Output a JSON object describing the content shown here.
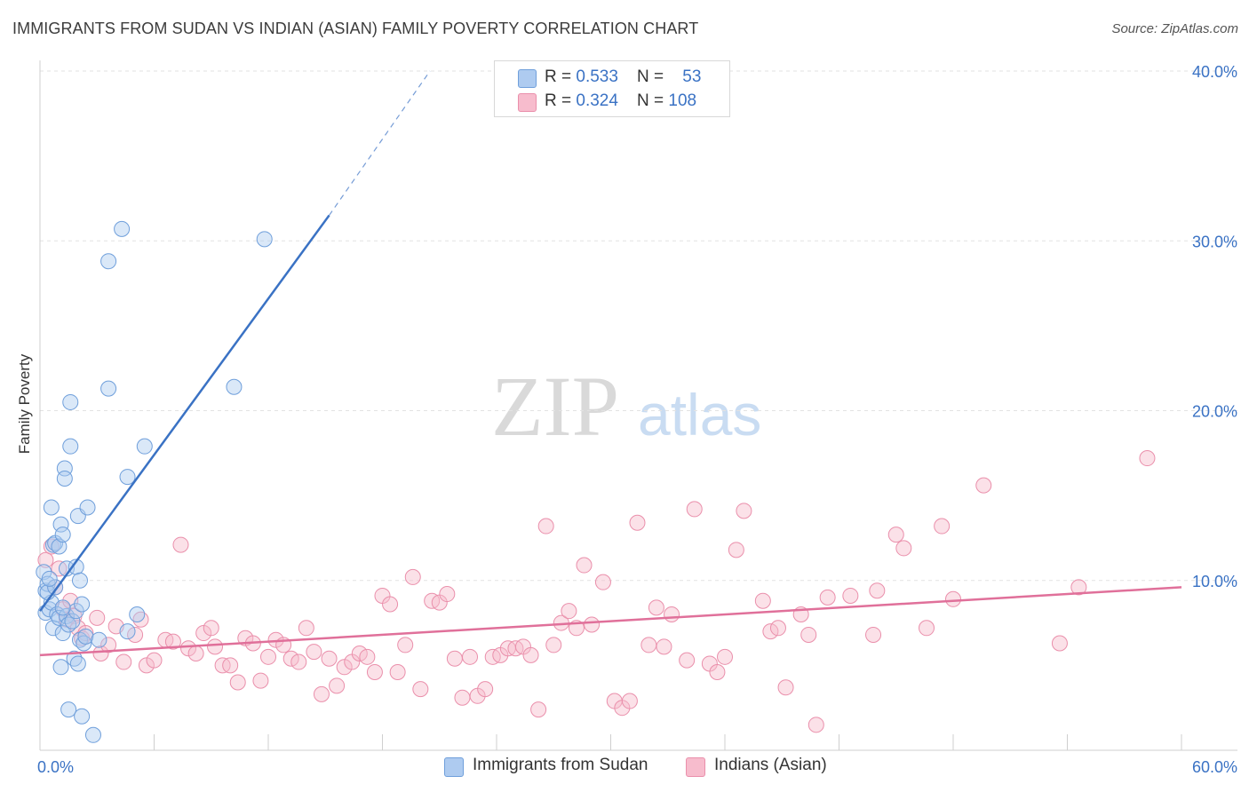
{
  "header": {
    "title": "IMMIGRANTS FROM SUDAN VS INDIAN (ASIAN) FAMILY POVERTY CORRELATION CHART",
    "source": "Source: ZipAtlas.com"
  },
  "watermark": {
    "zip": "ZIP",
    "atlas": "atlas"
  },
  "colors": {
    "sudan_fill": "#aecbf0",
    "sudan_stroke": "#6f9fdb",
    "sudan_line": "#3a72c4",
    "indian_fill": "#f7bccd",
    "indian_stroke": "#ea8fab",
    "indian_line": "#e0709a",
    "accent_text": "#3a72c4"
  },
  "legend": {
    "rows": [
      {
        "r_label": "R = ",
        "r_value": "0.533",
        "n_label": "N = ",
        "n_value": "53"
      },
      {
        "r_label": "R = ",
        "r_value": "0.324",
        "n_label": "N = ",
        "n_value": "108"
      }
    ]
  },
  "chart_data": {
    "type": "scatter",
    "title": "IMMIGRANTS FROM SUDAN VS INDIAN (ASIAN) FAMILY POVERTY CORRELATION CHART",
    "xlabel": "",
    "ylabel": "Family Poverty",
    "xlim": [
      0,
      60
    ],
    "ylim": [
      0,
      40
    ],
    "x_tick_labels": [
      "0.0%",
      "60.0%"
    ],
    "y_tick_labels": [
      "10.0%",
      "20.0%",
      "30.0%",
      "40.0%"
    ],
    "y_ticks": [
      10,
      20,
      30,
      40
    ],
    "grid": true,
    "legend_position": "top-center",
    "series": [
      {
        "name": "Immigrants from Sudan",
        "r": 0.533,
        "n": 53,
        "trend": {
          "x0": 0,
          "y0": 8.2,
          "x1": 15.2,
          "y1": 31.5,
          "dash_x1": 20.5,
          "dash_y1": 40.0
        },
        "points": [
          [
            0.2,
            10.5
          ],
          [
            0.3,
            8.1
          ],
          [
            0.3,
            9.4
          ],
          [
            0.4,
            9.8
          ],
          [
            0.5,
            8.3
          ],
          [
            0.6,
            8.7
          ],
          [
            0.6,
            14.3
          ],
          [
            0.7,
            12.1
          ],
          [
            0.7,
            7.2
          ],
          [
            0.8,
            12.2
          ],
          [
            0.9,
            8.0
          ],
          [
            1.0,
            12.0
          ],
          [
            1.0,
            7.8
          ],
          [
            1.1,
            13.3
          ],
          [
            1.1,
            4.9
          ],
          [
            1.2,
            12.7
          ],
          [
            1.2,
            6.9
          ],
          [
            1.3,
            16.6
          ],
          [
            1.3,
            16.0
          ],
          [
            1.4,
            7.9
          ],
          [
            1.4,
            10.7
          ],
          [
            1.5,
            2.4
          ],
          [
            1.5,
            7.4
          ],
          [
            1.6,
            20.5
          ],
          [
            1.6,
            17.9
          ],
          [
            1.7,
            7.6
          ],
          [
            1.8,
            5.4
          ],
          [
            1.9,
            10.8
          ],
          [
            1.9,
            8.2
          ],
          [
            2.0,
            5.1
          ],
          [
            2.0,
            13.8
          ],
          [
            2.1,
            6.5
          ],
          [
            2.1,
            10.0
          ],
          [
            2.2,
            2.0
          ],
          [
            2.2,
            8.6
          ],
          [
            2.3,
            6.3
          ],
          [
            2.4,
            6.7
          ],
          [
            2.5,
            14.3
          ],
          [
            2.8,
            0.9
          ],
          [
            3.1,
            6.5
          ],
          [
            3.6,
            21.3
          ],
          [
            3.6,
            28.8
          ],
          [
            4.3,
            30.7
          ],
          [
            4.6,
            16.1
          ],
          [
            4.6,
            7.0
          ],
          [
            5.1,
            8.0
          ],
          [
            5.5,
            17.9
          ],
          [
            10.2,
            21.4
          ],
          [
            11.8,
            30.1
          ],
          [
            0.4,
            9.3
          ],
          [
            0.8,
            9.6
          ],
          [
            1.2,
            8.4
          ],
          [
            0.5,
            10.1
          ]
        ]
      },
      {
        "name": "Indians (Asian)",
        "r": 0.324,
        "n": 108,
        "trend": {
          "x0": 0,
          "y0": 5.6,
          "x1": 60,
          "y1": 9.6
        },
        "points": [
          [
            0.3,
            11.2
          ],
          [
            0.6,
            12.0
          ],
          [
            0.8,
            9.6
          ],
          [
            1.0,
            10.7
          ],
          [
            1.2,
            8.3
          ],
          [
            1.4,
            7.7
          ],
          [
            1.6,
            8.8
          ],
          [
            1.8,
            7.9
          ],
          [
            2.0,
            7.2
          ],
          [
            2.2,
            6.6
          ],
          [
            2.4,
            6.9
          ],
          [
            3.0,
            7.8
          ],
          [
            3.2,
            5.7
          ],
          [
            3.6,
            6.2
          ],
          [
            4.0,
            7.3
          ],
          [
            4.4,
            5.2
          ],
          [
            5.0,
            6.8
          ],
          [
            5.3,
            7.7
          ],
          [
            5.6,
            5.0
          ],
          [
            6.0,
            5.3
          ],
          [
            6.6,
            6.5
          ],
          [
            7.0,
            6.4
          ],
          [
            7.4,
            12.1
          ],
          [
            7.8,
            6.0
          ],
          [
            8.2,
            5.7
          ],
          [
            8.6,
            6.9
          ],
          [
            9.0,
            7.2
          ],
          [
            9.2,
            6.1
          ],
          [
            9.6,
            5.0
          ],
          [
            10.0,
            5.0
          ],
          [
            10.4,
            4.0
          ],
          [
            10.8,
            6.6
          ],
          [
            11.2,
            6.3
          ],
          [
            11.6,
            4.1
          ],
          [
            12.0,
            5.5
          ],
          [
            12.4,
            6.5
          ],
          [
            12.8,
            6.2
          ],
          [
            13.2,
            5.4
          ],
          [
            13.6,
            5.2
          ],
          [
            14.0,
            7.2
          ],
          [
            14.4,
            5.8
          ],
          [
            14.8,
            3.3
          ],
          [
            15.2,
            5.4
          ],
          [
            15.6,
            3.8
          ],
          [
            16.0,
            4.9
          ],
          [
            16.4,
            5.2
          ],
          [
            16.8,
            5.7
          ],
          [
            17.2,
            5.5
          ],
          [
            17.6,
            4.6
          ],
          [
            18.0,
            9.1
          ],
          [
            18.4,
            8.6
          ],
          [
            18.8,
            4.6
          ],
          [
            19.2,
            6.2
          ],
          [
            19.6,
            10.2
          ],
          [
            20.0,
            3.6
          ],
          [
            20.6,
            8.8
          ],
          [
            21.0,
            8.7
          ],
          [
            21.4,
            9.2
          ],
          [
            21.8,
            5.4
          ],
          [
            22.2,
            3.1
          ],
          [
            22.6,
            5.5
          ],
          [
            23.0,
            3.2
          ],
          [
            23.4,
            3.6
          ],
          [
            23.8,
            5.5
          ],
          [
            24.2,
            5.6
          ],
          [
            24.6,
            6.0
          ],
          [
            25.0,
            6.0
          ],
          [
            25.4,
            6.1
          ],
          [
            25.8,
            5.6
          ],
          [
            26.2,
            2.4
          ],
          [
            26.6,
            13.2
          ],
          [
            27.0,
            6.2
          ],
          [
            27.4,
            7.5
          ],
          [
            27.8,
            8.2
          ],
          [
            28.2,
            7.2
          ],
          [
            28.6,
            10.9
          ],
          [
            29.0,
            7.4
          ],
          [
            29.6,
            9.9
          ],
          [
            30.2,
            2.9
          ],
          [
            30.6,
            2.5
          ],
          [
            31.0,
            2.9
          ],
          [
            31.4,
            13.4
          ],
          [
            32.0,
            6.2
          ],
          [
            32.4,
            8.4
          ],
          [
            32.8,
            6.1
          ],
          [
            33.2,
            8.0
          ],
          [
            34.0,
            5.3
          ],
          [
            34.4,
            14.2
          ],
          [
            35.2,
            5.1
          ],
          [
            35.6,
            4.6
          ],
          [
            36.0,
            5.5
          ],
          [
            36.6,
            11.8
          ],
          [
            37.0,
            14.1
          ],
          [
            38.0,
            8.8
          ],
          [
            38.4,
            7.0
          ],
          [
            38.8,
            7.2
          ],
          [
            39.2,
            3.7
          ],
          [
            40.0,
            8.0
          ],
          [
            40.4,
            6.8
          ],
          [
            40.8,
            1.5
          ],
          [
            41.4,
            9.0
          ],
          [
            42.6,
            9.1
          ],
          [
            43.8,
            6.8
          ],
          [
            44.0,
            9.4
          ],
          [
            45.0,
            12.7
          ],
          [
            45.4,
            11.9
          ],
          [
            46.6,
            7.2
          ],
          [
            47.4,
            13.2
          ],
          [
            48.0,
            8.9
          ],
          [
            49.6,
            15.6
          ],
          [
            53.6,
            6.3
          ],
          [
            54.6,
            9.6
          ],
          [
            58.2,
            17.2
          ]
        ]
      }
    ]
  }
}
